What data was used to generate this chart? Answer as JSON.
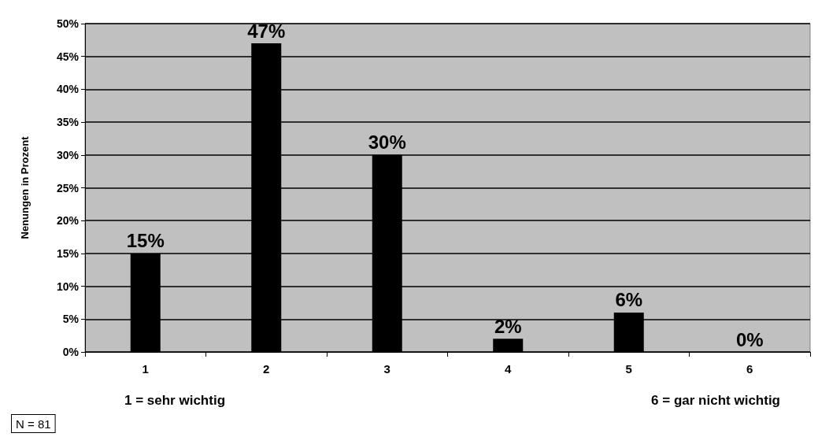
{
  "chart_data": {
    "type": "bar",
    "ylabel": "Nenungen in Prozent",
    "categories": [
      "1",
      "2",
      "3",
      "4",
      "5",
      "6"
    ],
    "values": [
      15,
      47,
      30,
      2,
      6,
      0
    ],
    "value_labels": [
      "15%",
      "47%",
      "30%",
      "2%",
      "6%",
      "0%"
    ],
    "color": "#000000",
    "ylim": [
      0,
      50
    ],
    "yticks": [
      {
        "value": 0,
        "label": "0%"
      },
      {
        "value": 5,
        "label": "5%"
      },
      {
        "value": 10,
        "label": "10%"
      },
      {
        "value": 15,
        "label": "15%"
      },
      {
        "value": 20,
        "label": "20%"
      },
      {
        "value": 25,
        "label": "25%"
      },
      {
        "value": 30,
        "label": "30%"
      },
      {
        "value": 35,
        "label": "35%"
      },
      {
        "value": 40,
        "label": "40%"
      },
      {
        "value": 45,
        "label": "45%"
      },
      {
        "value": 50,
        "label": "50%"
      }
    ],
    "grid": "y",
    "annotations": [
      "1 = sehr wichtig",
      "6 = gar nicht wichtig",
      "N = 81"
    ]
  }
}
